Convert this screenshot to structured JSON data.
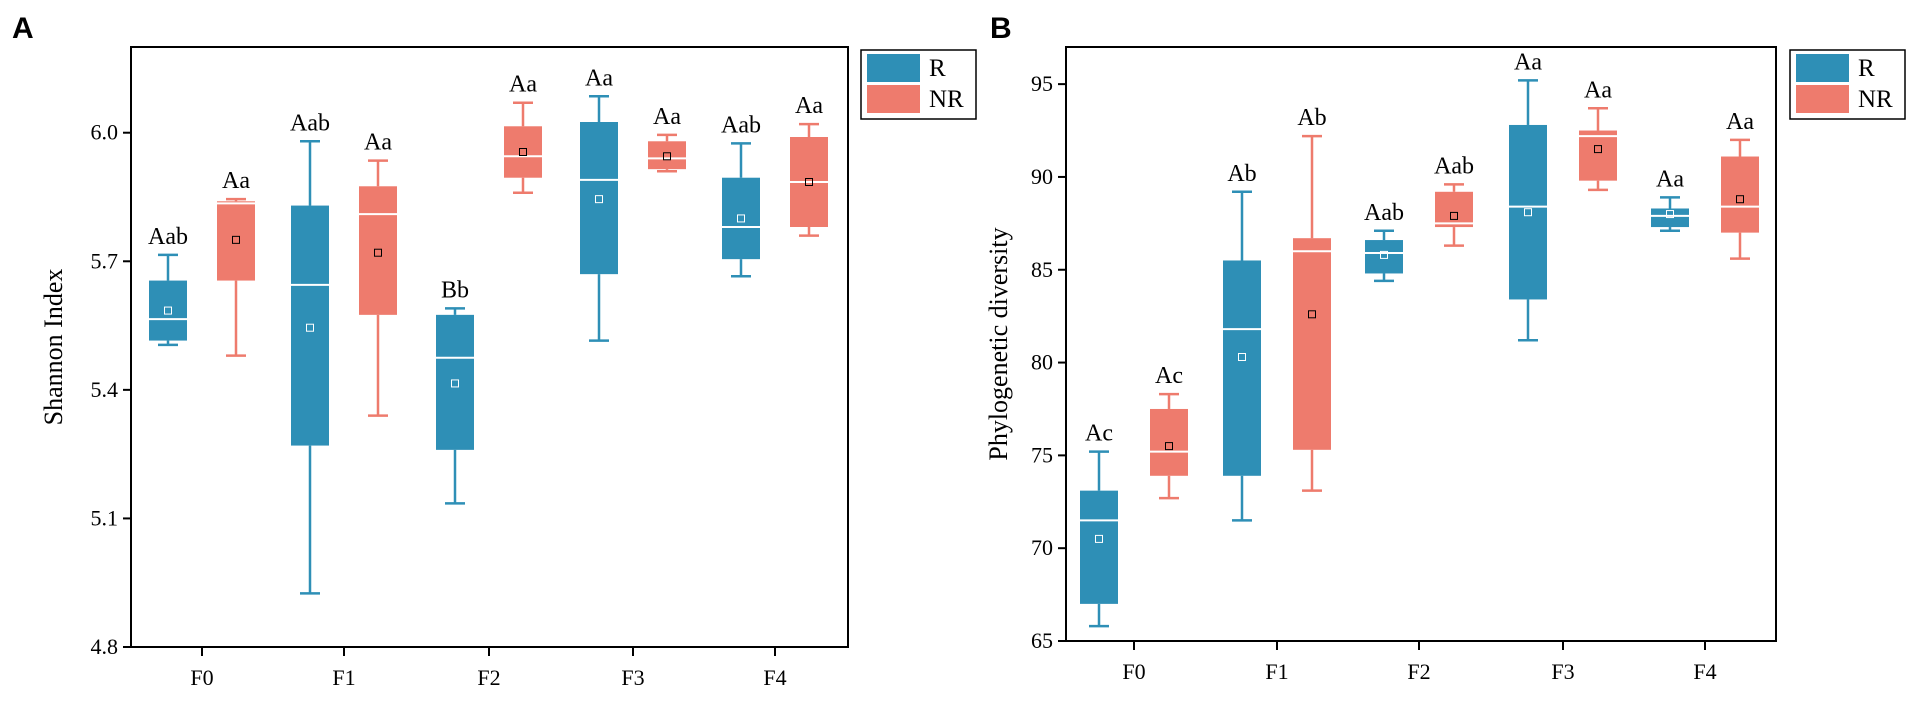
{
  "colors": {
    "R": "#2e8fb6",
    "NR": "#ee7b6d",
    "axis": "#000000"
  },
  "chart_data": [
    {
      "panel": "A",
      "type": "box",
      "ylabel": "Shannon Index",
      "xlabel": "",
      "ylim": [
        4.8,
        6.2
      ],
      "yticks": [
        "4.8",
        "5.1",
        "5.4",
        "5.7",
        "6.0"
      ],
      "yticks_values": [
        4.8,
        5.1,
        5.4,
        5.7,
        6.0
      ],
      "categories": [
        "F0",
        "F1",
        "F2",
        "F3",
        "F4"
      ],
      "legend": [
        "R",
        "NR"
      ],
      "legend_position": "top-right",
      "series": [
        {
          "name": "R",
          "boxes": [
            {
              "min": 5.505,
              "q1": 5.515,
              "median": 5.565,
              "q3": 5.655,
              "max": 5.715,
              "mean": 5.585,
              "label": "Aab"
            },
            {
              "min": 4.925,
              "q1": 5.27,
              "median": 5.645,
              "q3": 5.83,
              "max": 5.98,
              "mean": 5.545,
              "label": "Aab"
            },
            {
              "min": 5.135,
              "q1": 5.26,
              "median": 5.475,
              "q3": 5.575,
              "max": 5.59,
              "mean": 5.415,
              "label": "Bb"
            },
            {
              "min": 5.515,
              "q1": 5.67,
              "median": 5.89,
              "q3": 6.025,
              "max": 6.085,
              "mean": 5.845,
              "label": "Aa"
            },
            {
              "min": 5.665,
              "q1": 5.705,
              "median": 5.78,
              "q3": 5.895,
              "max": 5.975,
              "mean": 5.8,
              "label": "Aab"
            }
          ]
        },
        {
          "name": "NR",
          "boxes": [
            {
              "min": 5.48,
              "q1": 5.655,
              "median": 5.835,
              "q3": 5.84,
              "max": 5.845,
              "mean": 5.75,
              "label": "Aa"
            },
            {
              "min": 5.34,
              "q1": 5.575,
              "median": 5.81,
              "q3": 5.875,
              "max": 5.935,
              "mean": 5.72,
              "label": "Aa"
            },
            {
              "min": 5.86,
              "q1": 5.895,
              "median": 5.945,
              "q3": 6.015,
              "max": 6.07,
              "mean": 5.955,
              "label": "Aa"
            },
            {
              "min": 5.91,
              "q1": 5.915,
              "median": 5.94,
              "q3": 5.98,
              "max": 5.995,
              "mean": 5.945,
              "label": "Aa"
            },
            {
              "min": 5.76,
              "q1": 5.78,
              "median": 5.885,
              "q3": 5.99,
              "max": 6.02,
              "mean": 5.885,
              "label": "Aa"
            }
          ]
        }
      ]
    },
    {
      "panel": "B",
      "type": "box",
      "ylabel": "Phylogenetic diversity",
      "xlabel": "",
      "ylim": [
        65,
        97
      ],
      "yticks": [
        "65",
        "70",
        "75",
        "80",
        "85",
        "90",
        "95"
      ],
      "yticks_values": [
        65,
        70,
        75,
        80,
        85,
        90,
        95
      ],
      "categories": [
        "F0",
        "F1",
        "F2",
        "F3",
        "F4"
      ],
      "legend": [
        "R",
        "NR"
      ],
      "legend_position": "top-right",
      "series": [
        {
          "name": "R",
          "boxes": [
            {
              "min": 65.8,
              "q1": 67.0,
              "median": 71.5,
              "q3": 73.1,
              "max": 75.2,
              "mean": 70.5,
              "label": "Ac"
            },
            {
              "min": 71.5,
              "q1": 73.9,
              "median": 81.8,
              "q3": 85.5,
              "max": 89.2,
              "mean": 80.3,
              "label": "Ab"
            },
            {
              "min": 84.4,
              "q1": 84.8,
              "median": 85.9,
              "q3": 86.6,
              "max": 87.1,
              "mean": 85.8,
              "label": "Aab"
            },
            {
              "min": 81.2,
              "q1": 83.4,
              "median": 88.4,
              "q3": 92.8,
              "max": 95.2,
              "mean": 88.1,
              "label": "Aa"
            },
            {
              "min": 87.1,
              "q1": 87.3,
              "median": 87.9,
              "q3": 88.3,
              "max": 88.9,
              "mean": 88.0,
              "label": "Aa"
            }
          ]
        },
        {
          "name": "NR",
          "boxes": [
            {
              "min": 72.7,
              "q1": 73.9,
              "median": 75.2,
              "q3": 77.5,
              "max": 78.3,
              "mean": 75.5,
              "label": "Ac"
            },
            {
              "min": 73.1,
              "q1": 75.3,
              "median": 86.0,
              "q3": 86.7,
              "max": 92.2,
              "mean": 82.6,
              "label": "Ab"
            },
            {
              "min": 86.3,
              "q1": 87.3,
              "median": 87.5,
              "q3": 89.2,
              "max": 89.6,
              "mean": 87.9,
              "label": "Aab"
            },
            {
              "min": 89.3,
              "q1": 89.8,
              "median": 92.2,
              "q3": 92.5,
              "max": 93.7,
              "mean": 91.5,
              "label": "Aa"
            },
            {
              "min": 85.6,
              "q1": 87.0,
              "median": 88.4,
              "q3": 91.1,
              "max": 92.0,
              "mean": 88.8,
              "label": "Aa"
            }
          ]
        }
      ]
    }
  ]
}
